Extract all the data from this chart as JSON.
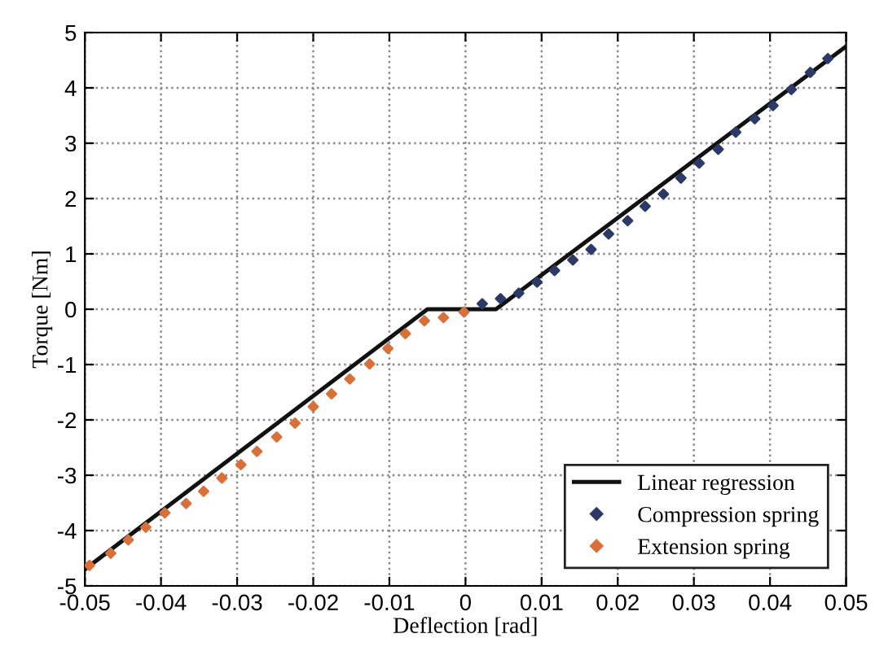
{
  "chart_data": {
    "type": "scatter",
    "xlabel": "Deflection [rad]",
    "ylabel": "Torque [Nm]",
    "xlim": [
      -0.05,
      0.05
    ],
    "ylim": [
      -5,
      5
    ],
    "xticks": [
      {
        "value": -0.05,
        "label": "-0.05"
      },
      {
        "value": -0.04,
        "label": "-0.04"
      },
      {
        "value": -0.03,
        "label": "-0.03"
      },
      {
        "value": -0.02,
        "label": "-0.02"
      },
      {
        "value": -0.01,
        "label": "-0.01"
      },
      0,
      0.01,
      0.02,
      0.03,
      0.04,
      0.05
    ],
    "yticks": [
      {
        "value": -5,
        "label": "-5"
      },
      {
        "value": -4,
        "label": "-4"
      },
      {
        "value": -3,
        "label": "-3"
      },
      {
        "value": -2,
        "label": "-2"
      },
      {
        "value": -1,
        "label": "-1"
      },
      0,
      1,
      2,
      3,
      4,
      5
    ],
    "grid": true,
    "legend": "bottom right",
    "series": [
      {
        "name": "Linear regression",
        "type": "line",
        "color": "#111111",
        "marker": "none",
        "line_style": "solid",
        "x": [
          -0.05,
          -0.005,
          0.004,
          0.05
        ],
        "values": [
          -4.7,
          0,
          0,
          4.75
        ]
      },
      {
        "name": "Compression spring",
        "color": "#2b3a67",
        "marker": "diamond",
        "x": [
          0.0022,
          0.0046,
          0.007,
          0.0094,
          0.0117,
          0.0141,
          0.0165,
          0.0188,
          0.0213,
          0.0236,
          0.026,
          0.0283,
          0.0307,
          0.0332,
          0.0355,
          0.038,
          0.0404,
          0.0428,
          0.0453,
          0.0476
        ],
        "values": [
          0.1,
          0.19,
          0.29,
          0.49,
          0.7,
          0.89,
          1.08,
          1.36,
          1.6,
          1.86,
          2.08,
          2.37,
          2.64,
          2.89,
          3.2,
          3.44,
          3.68,
          3.97,
          4.28,
          4.53
        ]
      },
      {
        "name": "Extension spring",
        "color": "#d9703a",
        "marker": "diamond",
        "x": [
          -0.0494,
          -0.0466,
          -0.0443,
          -0.042,
          -0.0395,
          -0.0367,
          -0.0344,
          -0.032,
          -0.0295,
          -0.0274,
          -0.0248,
          -0.0224,
          -0.02,
          -0.0176,
          -0.0152,
          -0.0126,
          -0.0102,
          -0.0079,
          -0.0054,
          -0.0029,
          -0.0002
        ],
        "values": [
          -4.63,
          -4.41,
          -4.17,
          -3.94,
          -3.68,
          -3.51,
          -3.29,
          -3.05,
          -2.81,
          -2.57,
          -2.31,
          -2.06,
          -1.76,
          -1.53,
          -1.26,
          -0.99,
          -0.71,
          -0.44,
          -0.21,
          -0.15,
          -0.05
        ]
      }
    ]
  }
}
